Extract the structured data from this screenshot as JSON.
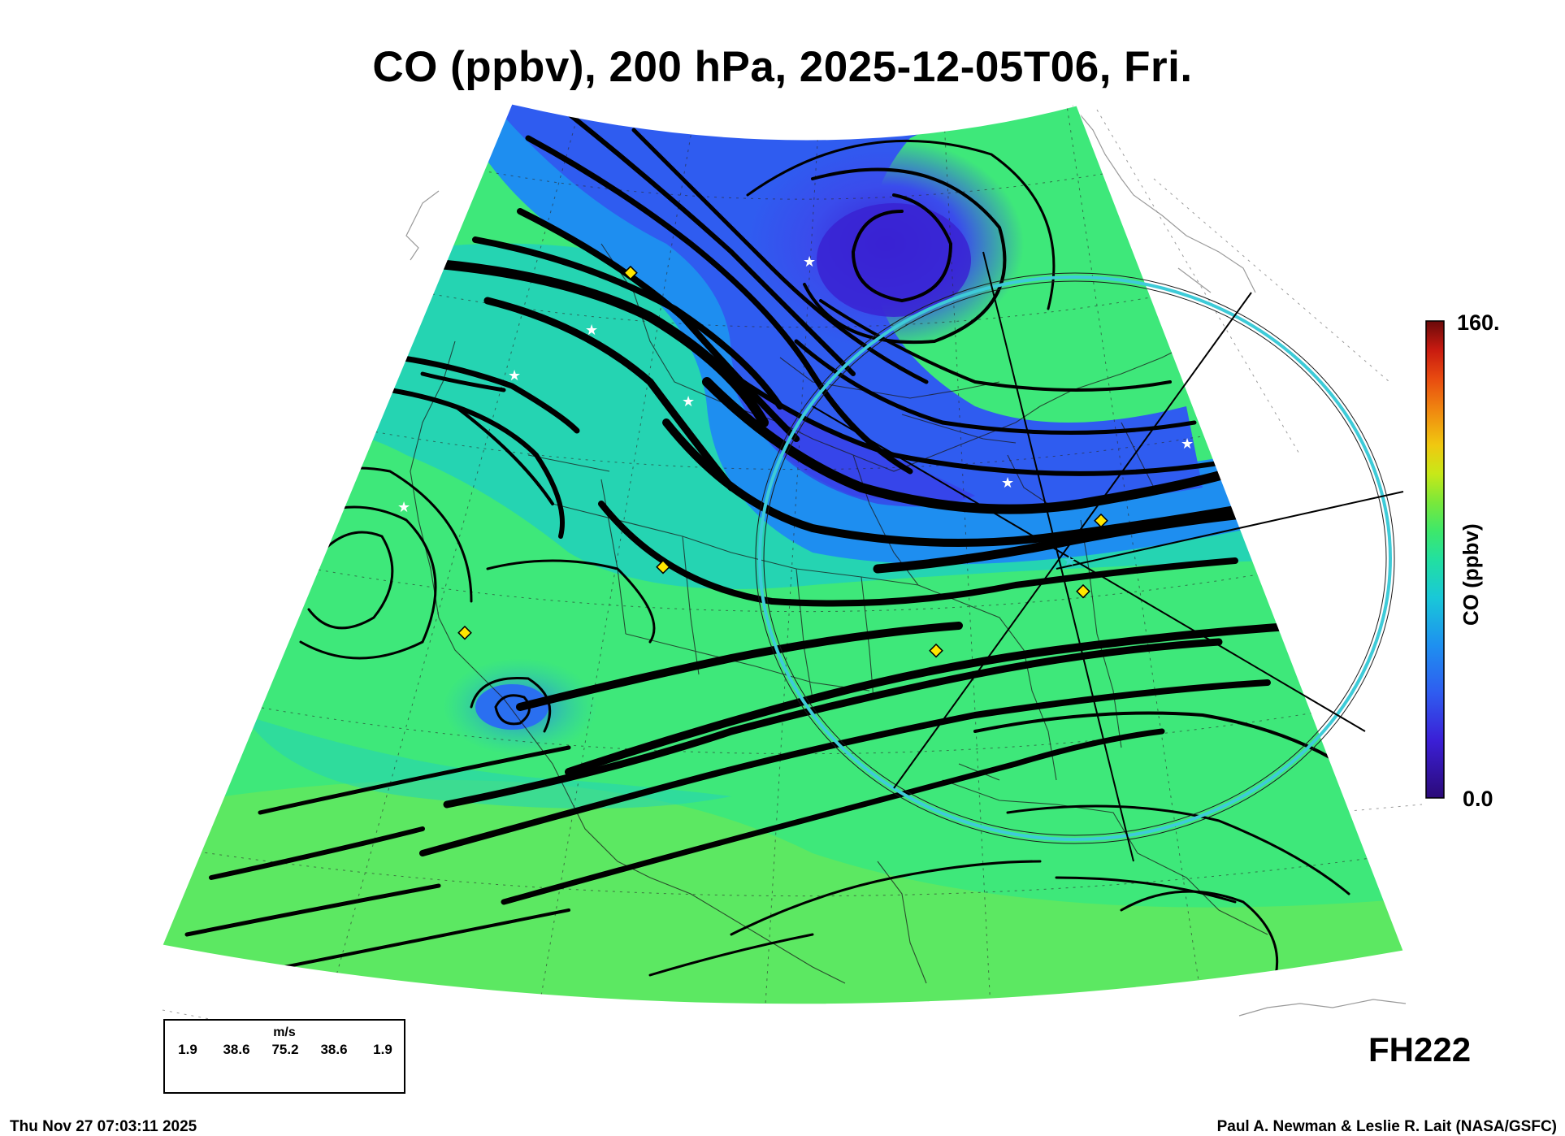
{
  "title": "CO (ppbv), 200 hPa, 2025-12-05T06, Fri.",
  "colorbar": {
    "max_label": "160.",
    "min_label": "0.0",
    "title": "CO (ppbv)",
    "range": [
      0,
      160
    ],
    "colors": [
      "#2b0a78",
      "#3b1fd6",
      "#2f5cf0",
      "#1e90f0",
      "#19c8d8",
      "#22e0a0",
      "#3ee86a",
      "#7ae83a",
      "#c8e818",
      "#f0c810",
      "#f08a10",
      "#e84a10",
      "#c81a10",
      "#6a0a0a"
    ]
  },
  "forecast_hour": "FH222",
  "timestamp": "Thu Nov 27 07:03:11 2025",
  "credit": "Paul A. Newman & Leslie R. Lait (NASA/GSFC)",
  "wind_legend": {
    "unit": "m/s",
    "values": [
      "1.9",
      "38.6",
      "75.2",
      "38.6",
      "1.9"
    ]
  },
  "map": {
    "field_colors": {
      "low": "#3a3ee8",
      "mid": "#1a9ef0",
      "high": "#3ee87a",
      "peak": "#7ae83a"
    },
    "range_ring_color": "#3ecbd8",
    "marker_colors": {
      "diamond": "#ffe600",
      "star": "#ffffff"
    }
  }
}
